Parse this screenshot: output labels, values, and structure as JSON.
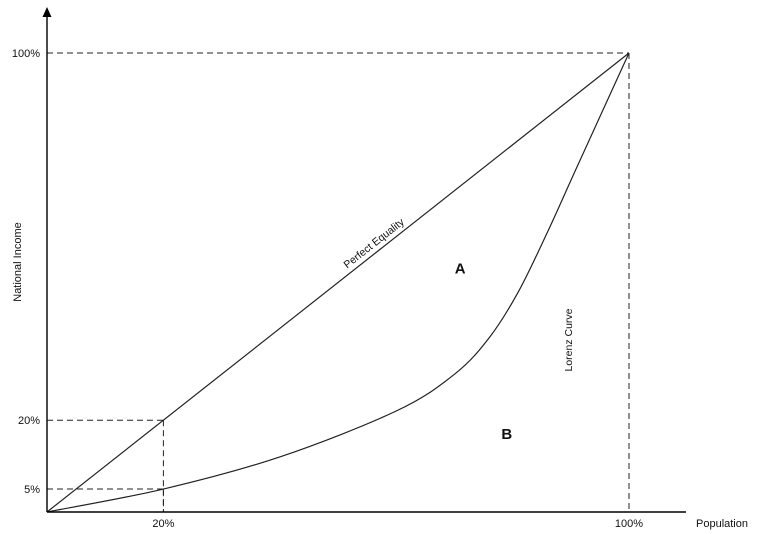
{
  "chart_data": {
    "type": "line",
    "title": "",
    "xlabel": "Population",
    "ylabel": "National Income",
    "xlim": [
      0,
      100
    ],
    "ylim": [
      0,
      100
    ],
    "grid": false,
    "x_ticks": [
      {
        "value": 20,
        "label": "20%"
      },
      {
        "value": 100,
        "label": "100%"
      }
    ],
    "y_ticks": [
      {
        "value": 5,
        "label": "5%"
      },
      {
        "value": 20,
        "label": "20%"
      },
      {
        "value": 100,
        "label": "100%"
      }
    ],
    "series": [
      {
        "name": "Perfect Equality",
        "x": [
          0,
          100
        ],
        "y": [
          0,
          100
        ]
      },
      {
        "name": "Lorenz Curve",
        "x": [
          0,
          20,
          40,
          60,
          70,
          76,
          81,
          86,
          91,
          100
        ],
        "y": [
          0,
          5,
          12,
          22,
          30,
          38,
          48,
          61,
          75,
          100
        ]
      }
    ],
    "annotations": [
      {
        "text": "A",
        "x": 71,
        "y": 53
      },
      {
        "text": "B",
        "x": 79,
        "y": 17
      }
    ],
    "reference_lines": [
      {
        "x": 20,
        "y": 20
      },
      {
        "x": 20,
        "y": 5
      },
      {
        "x": 100,
        "y": 100
      }
    ]
  }
}
